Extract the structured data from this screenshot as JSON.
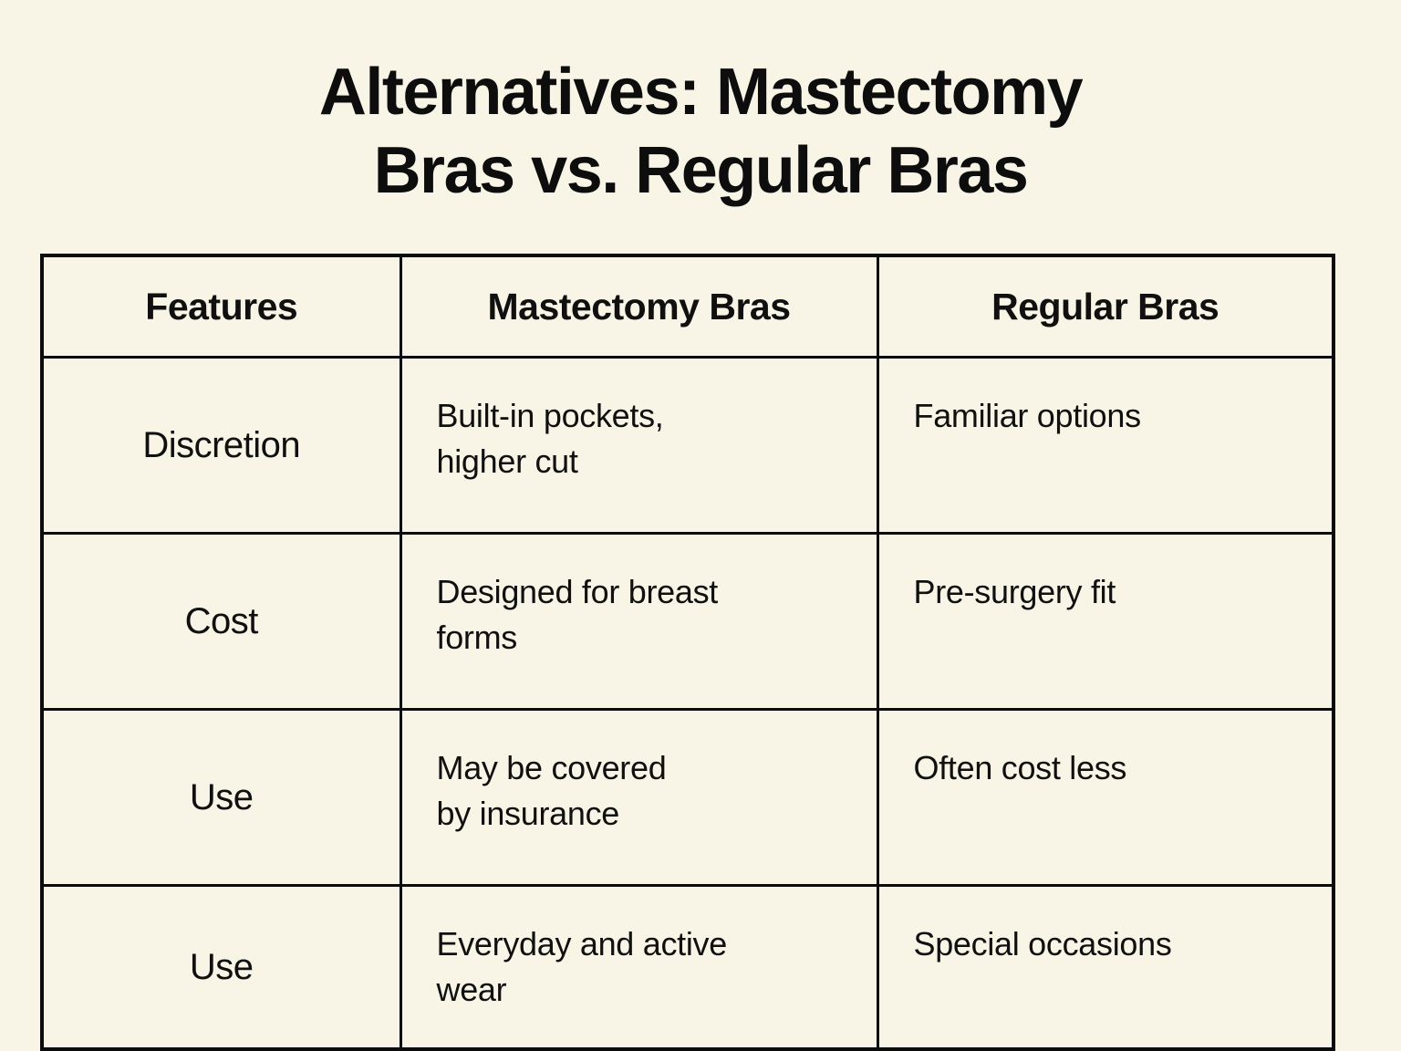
{
  "title": {
    "line1": "Alternatives: Mastectomy",
    "line2": "Bras vs. Regular Bras"
  },
  "colors": {
    "background": "#f9f5e6",
    "border": "#0c0c0c",
    "text": "#101010"
  },
  "chart_data": {
    "type": "table",
    "title": "Alternatives: Mastectomy Bras vs. Regular Bras",
    "headers": [
      "Features",
      "Mastectomy Bras",
      "Regular Bras"
    ],
    "rows": [
      {
        "feature": "Discretion",
        "mastectomy": "Built-in pockets,\nhigher cut",
        "regular": "Familiar options"
      },
      {
        "feature": "Cost",
        "mastectomy": "Designed for breast\nforms",
        "regular": "Pre-surgery fit"
      },
      {
        "feature": "Use",
        "mastectomy": "May be covered\nby insurance",
        "regular": "Often cost less"
      },
      {
        "feature": "Use",
        "mastectomy": "Everyday and active\nwear",
        "regular": "Special occasions"
      }
    ]
  }
}
